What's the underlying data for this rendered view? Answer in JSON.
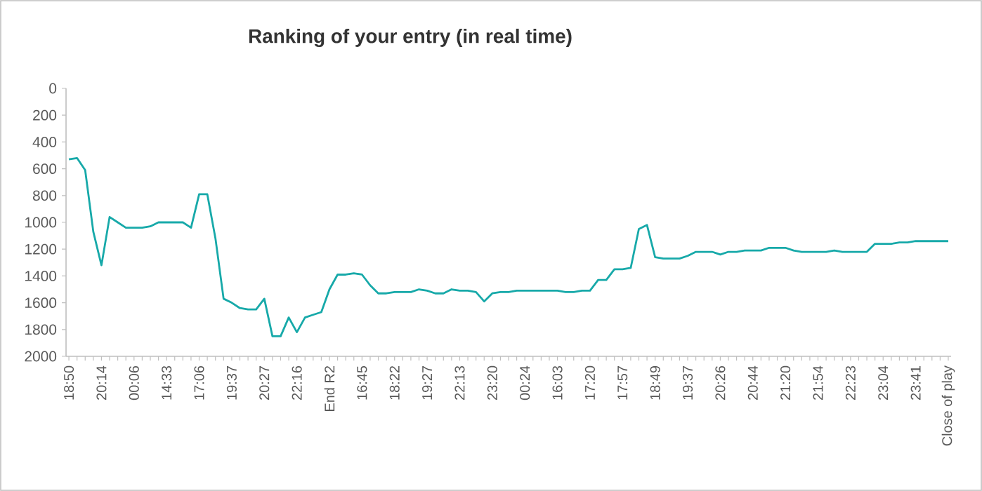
{
  "chart_data": {
    "type": "line",
    "title": "Ranking of your entry (in real time)",
    "categories": [
      "18:50",
      null,
      null,
      null,
      "20:14",
      null,
      null,
      null,
      "00:06",
      null,
      null,
      null,
      "14:33",
      null,
      null,
      null,
      "17:06",
      null,
      null,
      null,
      "19:37",
      null,
      null,
      null,
      "20:27",
      null,
      null,
      null,
      "22:16",
      null,
      null,
      null,
      "End R2",
      null,
      null,
      null,
      "16:45",
      null,
      null,
      null,
      "18:22",
      null,
      null,
      null,
      "19:27",
      null,
      null,
      null,
      "22:13",
      null,
      null,
      null,
      "23:20",
      null,
      null,
      null,
      "00:24",
      null,
      null,
      null,
      "16:03",
      null,
      null,
      null,
      "17:20",
      null,
      null,
      null,
      "17:57",
      null,
      null,
      null,
      "18:49",
      null,
      null,
      null,
      "19:37",
      null,
      null,
      null,
      "20:26",
      null,
      null,
      null,
      "20:44",
      null,
      null,
      null,
      "21:20",
      null,
      null,
      null,
      "21:54",
      null,
      null,
      null,
      "22:23",
      null,
      null,
      null,
      "23:04",
      null,
      null,
      null,
      "23:41",
      null,
      null,
      null,
      "Close of play"
    ],
    "values": [
      530,
      520,
      610,
      1070,
      1320,
      960,
      1000,
      1040,
      1040,
      1040,
      1030,
      1000,
      1000,
      1000,
      1000,
      1040,
      790,
      790,
      1120,
      1570,
      1600,
      1640,
      1650,
      1650,
      1570,
      1850,
      1850,
      1710,
      1820,
      1710,
      1690,
      1670,
      1500,
      1390,
      1390,
      1380,
      1390,
      1470,
      1530,
      1530,
      1520,
      1520,
      1520,
      1500,
      1510,
      1530,
      1530,
      1500,
      1510,
      1510,
      1520,
      1590,
      1530,
      1520,
      1520,
      1510,
      1510,
      1510,
      1510,
      1510,
      1510,
      1520,
      1520,
      1510,
      1510,
      1430,
      1430,
      1350,
      1350,
      1340,
      1050,
      1020,
      1260,
      1270,
      1270,
      1270,
      1250,
      1220,
      1220,
      1220,
      1240,
      1220,
      1220,
      1210,
      1210,
      1210,
      1190,
      1190,
      1190,
      1210,
      1220,
      1220,
      1220,
      1220,
      1210,
      1220,
      1220,
      1220,
      1220,
      1160,
      1160,
      1160,
      1150,
      1150,
      1140,
      1140,
      1140,
      1140,
      1140
    ],
    "color": "#17a9a9",
    "ylim": [
      2000,
      0
    ],
    "yticks": [
      0,
      200,
      400,
      600,
      800,
      1000,
      1200,
      1400,
      1600,
      1800,
      2000
    ]
  }
}
